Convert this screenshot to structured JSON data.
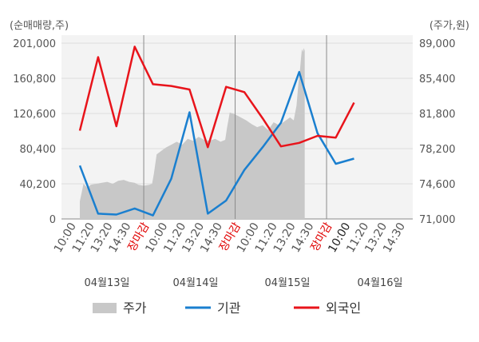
{
  "chart_data": {
    "type": "line",
    "y_left_unit": "(순매매량,주)",
    "y_right_unit": "(주가,원)",
    "y_left_ticks": [
      "201,000",
      "160,800",
      "120,600",
      "80,400",
      "40,200",
      "0"
    ],
    "y_right_ticks": [
      "89,000",
      "85,400",
      "81,800",
      "78,200",
      "74,600",
      "71,000"
    ],
    "ylim_left": [
      0,
      201000
    ],
    "ylim_right": [
      71000,
      89000
    ],
    "x_tick_labels": [
      "10:00",
      "11:20",
      "13:20",
      "14:30",
      "장마감",
      "10:00",
      "11:20",
      "13:20",
      "14:30",
      "장마감",
      "10:00",
      "11:20",
      "13:20",
      "14:30",
      "장마감",
      "10:00",
      "11:20",
      "13:20",
      "14:30"
    ],
    "close_label": "장마감",
    "current_label_index": 15,
    "dates": [
      "04월13일",
      "04월14일",
      "04월15일",
      "04월16일"
    ],
    "legend": [
      "주가",
      "기관",
      "외국인"
    ],
    "colors": {
      "price": "#c8c8c8",
      "institution": "#1a7fcf",
      "foreign": "#e8141b",
      "plot_bg": "#f3f3f3",
      "grid": "#dddddd",
      "divider": "#8a8a8a"
    },
    "grid": true,
    "legend_position": "bottom",
    "institution": {
      "x": [
        0,
        1,
        2,
        3,
        4,
        5,
        6,
        7,
        8,
        9,
        10,
        11,
        12,
        13,
        14,
        15
      ],
      "y": [
        61000,
        6000,
        5000,
        12000,
        4000,
        46000,
        122000,
        6000,
        21000,
        56000,
        82000,
        110000,
        168000,
        98000,
        63000,
        69000
      ]
    },
    "foreign": {
      "x": [
        0,
        1,
        2,
        3,
        4,
        5,
        6,
        7,
        8,
        9,
        10,
        11,
        12,
        13,
        14,
        15
      ],
      "y": [
        101000,
        185000,
        106000,
        197000,
        154000,
        152000,
        148000,
        82000,
        151000,
        145000,
        115000,
        83000,
        87000,
        95000,
        93000,
        133000
      ]
    },
    "price": {
      "x": [
        0,
        0.2,
        0.4,
        0.6,
        0.9,
        1.2,
        1.5,
        1.8,
        2.1,
        2.4,
        2.7,
        3.0,
        3.2,
        3.5,
        3.8,
        3.95,
        4.05,
        4.2,
        4.4,
        4.7,
        5.0,
        5.3,
        5.6,
        5.9,
        6.2,
        6.5,
        6.8,
        7.1,
        7.4,
        7.7,
        7.95,
        8.05,
        8.2,
        8.5,
        8.8,
        9.1,
        9.4,
        9.7,
        10.0,
        10.3,
        10.6,
        10.9,
        11.2,
        11.5,
        11.7,
        11.85,
        11.95,
        12.05,
        12.1,
        12.15,
        12.2,
        12.25,
        12.3
      ],
      "y": [
        72800,
        74600,
        74200,
        74500,
        74600,
        74700,
        74800,
        74600,
        74900,
        75000,
        74800,
        74700,
        74500,
        74400,
        74500,
        74600,
        75600,
        77600,
        77900,
        78300,
        78600,
        78900,
        78600,
        79200,
        79000,
        79400,
        79100,
        79000,
        79200,
        78900,
        79100,
        80300,
        81900,
        81700,
        81400,
        81100,
        80700,
        80400,
        80600,
        80100,
        80900,
        80600,
        81000,
        81400,
        81100,
        82600,
        84800,
        86400,
        87500,
        88400,
        88100,
        88500,
        88200
      ]
    }
  }
}
